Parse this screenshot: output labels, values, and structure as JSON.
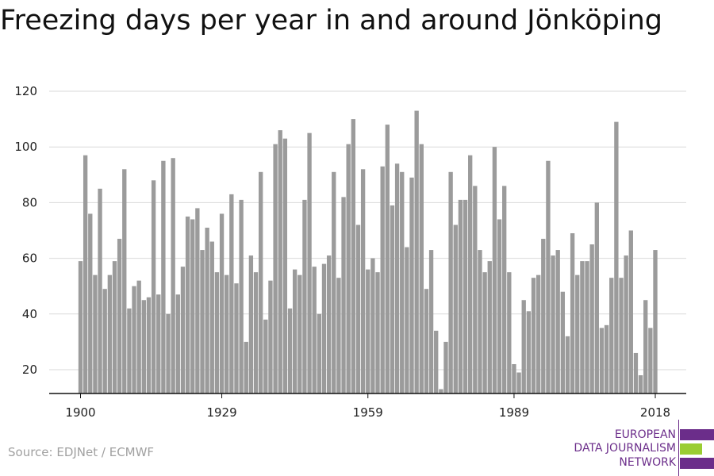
{
  "title": "Freezing days per year in and around Jönköping",
  "source": "Source: EDJNet / ECMWF",
  "logo": {
    "line1": "EUROPEAN",
    "line2": "DATA JOURNALISM",
    "line3": "NETWORK",
    "colors": {
      "purple": "#6b2d8a",
      "green": "#9acd32"
    }
  },
  "colors": {
    "bar": "#9b9b9b",
    "grid": "#d9d9d9",
    "axis": "#111111"
  },
  "chart_data": {
    "type": "bar",
    "title": "Freezing days per year in and around Jönköping",
    "xlabel": "",
    "ylabel": "",
    "ylim": [
      10,
      122
    ],
    "yticks": [
      20,
      40,
      60,
      80,
      100,
      120
    ],
    "xticks": [
      1900,
      1929,
      1959,
      1989,
      2018
    ],
    "grid": true,
    "x": [
      1900,
      1901,
      1902,
      1903,
      1904,
      1905,
      1906,
      1907,
      1908,
      1909,
      1910,
      1911,
      1912,
      1913,
      1914,
      1915,
      1916,
      1917,
      1918,
      1919,
      1920,
      1921,
      1922,
      1923,
      1924,
      1925,
      1926,
      1927,
      1928,
      1929,
      1930,
      1931,
      1932,
      1933,
      1934,
      1935,
      1936,
      1937,
      1938,
      1939,
      1940,
      1941,
      1942,
      1943,
      1944,
      1945,
      1946,
      1947,
      1948,
      1949,
      1950,
      1951,
      1952,
      1953,
      1954,
      1955,
      1956,
      1957,
      1958,
      1959,
      1960,
      1961,
      1962,
      1963,
      1964,
      1965,
      1966,
      1967,
      1968,
      1969,
      1970,
      1971,
      1972,
      1973,
      1974,
      1975,
      1976,
      1977,
      1978,
      1979,
      1980,
      1981,
      1982,
      1983,
      1984,
      1985,
      1986,
      1987,
      1988,
      1989,
      1990,
      1991,
      1992,
      1993,
      1994,
      1995,
      1996,
      1997,
      1998,
      1999,
      2000,
      2001,
      2002,
      2003,
      2004,
      2005,
      2006,
      2007,
      2008,
      2009,
      2010,
      2011,
      2012,
      2013,
      2014,
      2015,
      2016,
      2017,
      2018
    ],
    "values": [
      59,
      97,
      76,
      54,
      85,
      49,
      54,
      59,
      67,
      92,
      42,
      50,
      52,
      45,
      46,
      88,
      47,
      95,
      40,
      96,
      47,
      57,
      75,
      74,
      78,
      63,
      71,
      66,
      55,
      76,
      54,
      83,
      51,
      81,
      30,
      61,
      55,
      91,
      38,
      52,
      101,
      106,
      103,
      42,
      56,
      54,
      81,
      105,
      57,
      40,
      58,
      61,
      91,
      53,
      82,
      101,
      110,
      72,
      92,
      56,
      60,
      55,
      93,
      108,
      79,
      94,
      91,
      64,
      89,
      113,
      101,
      49,
      63,
      34,
      13,
      30,
      91,
      72,
      81,
      81,
      97,
      86,
      63,
      55,
      59,
      100,
      74,
      86,
      55,
      22,
      19,
      45,
      41,
      53,
      54,
      67,
      95,
      61,
      63,
      48,
      32,
      69,
      54,
      59,
      59,
      65,
      80,
      35,
      36,
      53,
      109,
      53,
      61,
      70,
      26,
      18,
      45,
      35,
      63
    ]
  }
}
